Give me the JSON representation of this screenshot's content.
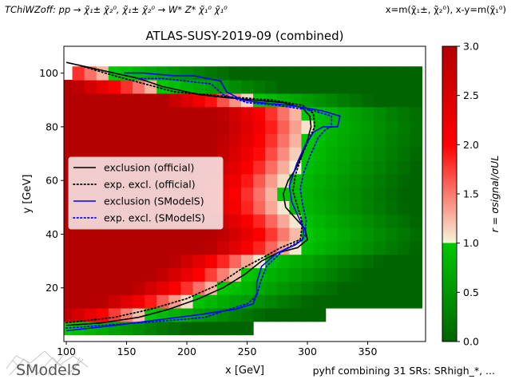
{
  "header_left": "TChiWZoff: pp → χ̃₁± χ̃₂⁰, χ̃₁± χ̃₂⁰ → W* Z* χ̃₁⁰ χ̃₁⁰",
  "header_right": "x=m(χ̃₁±, χ̃₂⁰), x-y=m(χ̃₁⁰)",
  "footer_right": "pyhf combining 31 SRs: SRhigh_*, ...",
  "logo_text": "SModelS",
  "chart_data": {
    "type": "heatmap",
    "title": "ATLAS-SUSY-2019-09 (combined)",
    "xlabel": "x [GeV]",
    "ylabel": "y [GeV]",
    "colorbar_label": "r = σsignal/σUL",
    "xlim": [
      98,
      398
    ],
    "ylim": [
      0,
      110
    ],
    "clim": [
      0,
      3
    ],
    "xticks": [
      100,
      150,
      200,
      250,
      300,
      350
    ],
    "yticks": [
      20,
      40,
      60,
      80,
      100
    ],
    "cticks": [
      0.0,
      0.5,
      1.0,
      1.5,
      2.0,
      2.5,
      3.0
    ],
    "colormap": [
      "#006400",
      "#00c800",
      "#f5f5dc",
      "#ff0000",
      "#b40000"
    ],
    "grid": false,
    "legend_position": "center-left",
    "legend": [
      {
        "label": "exclusion (official)",
        "color": "#000000",
        "style": "solid"
      },
      {
        "label": "exp. excl. (official)",
        "color": "#000000",
        "style": "dotted"
      },
      {
        "label": "exclusion (SModelS)",
        "color": "#0000ff",
        "style": "solid"
      },
      {
        "label": "exp. excl. (SModelS)",
        "color": "#0000ff",
        "style": "dotted"
      }
    ],
    "grid_x": [
      100,
      110,
      120,
      130,
      140,
      150,
      160,
      170,
      180,
      190,
      200,
      210,
      220,
      230,
      240,
      250,
      260,
      270,
      280,
      290,
      300,
      310,
      320,
      330,
      340,
      350,
      360,
      370,
      380,
      390
    ],
    "grid_y": [
      5,
      10,
      15,
      20,
      25,
      30,
      35,
      40,
      45,
      50,
      55,
      60,
      65,
      70,
      75,
      80,
      85,
      90,
      95,
      100
    ],
    "r_model": {
      "start_x": 100,
      "y_max": 100,
      "sat_width": 75,
      "ramp_width": 100
    },
    "contour_points": {
      "official_obs": [
        [
          100,
          6
        ],
        [
          130,
          7
        ],
        [
          160,
          9
        ],
        [
          185,
          12
        ],
        [
          210,
          16
        ],
        [
          230,
          20
        ],
        [
          248,
          25
        ],
        [
          262,
          30
        ],
        [
          275,
          33
        ],
        [
          292,
          35
        ],
        [
          300,
          38
        ],
        [
          298,
          42
        ],
        [
          290,
          46
        ],
        [
          282,
          50
        ],
        [
          280,
          55
        ],
        [
          284,
          60
        ],
        [
          290,
          64
        ],
        [
          296,
          70
        ],
        [
          300,
          75
        ],
        [
          303,
          80
        ],
        [
          302,
          84
        ],
        [
          296,
          87
        ],
        [
          280,
          89
        ],
        [
          255,
          90
        ],
        [
          230,
          91
        ],
        [
          210,
          92
        ],
        [
          180,
          95
        ],
        [
          160,
          98
        ],
        [
          130,
          101
        ],
        [
          100,
          104
        ]
      ],
      "official_exp": [
        [
          100,
          7
        ],
        [
          140,
          9
        ],
        [
          170,
          12
        ],
        [
          200,
          16
        ],
        [
          225,
          21
        ],
        [
          245,
          27
        ],
        [
          262,
          31
        ],
        [
          278,
          35
        ],
        [
          294,
          38
        ],
        [
          296,
          44
        ],
        [
          292,
          50
        ],
        [
          288,
          56
        ],
        [
          290,
          62
        ],
        [
          296,
          70
        ],
        [
          302,
          76
        ],
        [
          306,
          80
        ],
        [
          305,
          85
        ],
        [
          296,
          88
        ],
        [
          270,
          90
        ],
        [
          240,
          91
        ],
        [
          215,
          92
        ],
        [
          190,
          93
        ],
        [
          165,
          96
        ],
        [
          140,
          99
        ],
        [
          110,
          103
        ]
      ],
      "smodels_obs": [
        [
          100,
          4
        ],
        [
          140,
          6
        ],
        [
          175,
          8
        ],
        [
          210,
          10
        ],
        [
          240,
          12
        ],
        [
          255,
          14
        ],
        [
          258,
          18
        ],
        [
          258,
          22
        ],
        [
          262,
          28
        ],
        [
          275,
          33
        ],
        [
          290,
          36
        ],
        [
          296,
          38
        ],
        [
          297,
          42
        ],
        [
          292,
          47
        ],
        [
          287,
          52
        ],
        [
          285,
          58
        ],
        [
          291,
          66
        ],
        [
          298,
          73
        ],
        [
          305,
          78
        ],
        [
          313,
          80
        ],
        [
          325,
          80
        ],
        [
          327,
          84
        ],
        [
          312,
          86
        ],
        [
          285,
          88
        ],
        [
          260,
          89
        ],
        [
          246,
          90
        ],
        [
          233,
          93
        ],
        [
          228,
          97
        ],
        [
          206,
          99
        ],
        [
          190,
          99
        ],
        [
          164,
          100
        ],
        [
          148,
          100
        ]
      ],
      "smodels_exp": [
        [
          100,
          5
        ],
        [
          130,
          6
        ],
        [
          160,
          7
        ],
        [
          190,
          8
        ],
        [
          215,
          9
        ],
        [
          235,
          12
        ],
        [
          250,
          14
        ],
        [
          258,
          17
        ],
        [
          261,
          22
        ],
        [
          266,
          28
        ],
        [
          280,
          34
        ],
        [
          292,
          37
        ],
        [
          298,
          39
        ],
        [
          299,
          45
        ],
        [
          296,
          51
        ],
        [
          294,
          57
        ],
        [
          297,
          63
        ],
        [
          303,
          70
        ],
        [
          309,
          76
        ],
        [
          315,
          79
        ],
        [
          320,
          80
        ],
        [
          320,
          84
        ],
        [
          305,
          86
        ],
        [
          275,
          88
        ],
        [
          250,
          89
        ],
        [
          230,
          92
        ],
        [
          220,
          96
        ],
        [
          200,
          97
        ],
        [
          180,
          98
        ],
        [
          158,
          98
        ]
      ]
    }
  }
}
